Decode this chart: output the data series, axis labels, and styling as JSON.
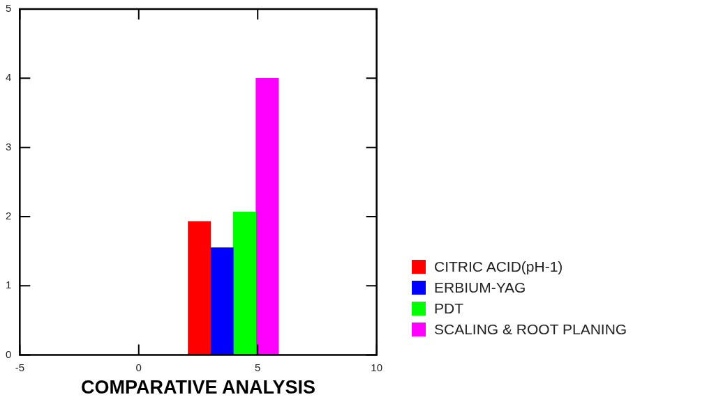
{
  "chart_data": {
    "type": "bar",
    "xlabel": "COMPARATIVE ANALYSIS",
    "xlim": [
      -5,
      10
    ],
    "xticks": [
      -5,
      0,
      5,
      10
    ],
    "ylim": [
      0,
      5
    ],
    "yticks": [
      0,
      1,
      2,
      3,
      4,
      5
    ],
    "grid": false,
    "legend": "right",
    "series": [
      {
        "name": "CITRIC ACID(pH-1)",
        "color": "#ff0000",
        "x": [
          2.55
        ],
        "values": [
          1.93
        ]
      },
      {
        "name": "ERBIUM-YAG",
        "color": "#0000ff",
        "x": [
          3.5
        ],
        "values": [
          1.55
        ]
      },
      {
        "name": "PDT",
        "color": "#00ff00",
        "x": [
          4.45
        ],
        "values": [
          2.07
        ]
      },
      {
        "name": "SCALING & ROOT PLANING",
        "color": "#ff00ff",
        "x": [
          5.4
        ],
        "values": [
          4.0
        ]
      }
    ]
  }
}
